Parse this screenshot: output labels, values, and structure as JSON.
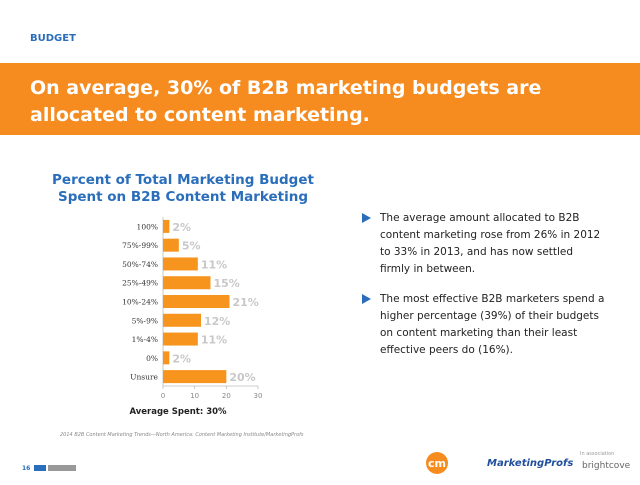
{
  "section": "BUDGET",
  "headline": [
    "On average, 30% of B2B marketing budgets are",
    "allocated to content marketing."
  ],
  "chart_data": {
    "type": "hbar",
    "title": [
      "Percent of Total Marketing Budget",
      "Spent on B2B Content Marketing"
    ],
    "categories": [
      "100%",
      "75%-99%",
      "50%-74%",
      "25%-49%",
      "10%-24%",
      "5%-9%",
      "1%-4%",
      "0%",
      "Unsure"
    ],
    "values": [
      2,
      5,
      11,
      15,
      21,
      12,
      11,
      2,
      20
    ],
    "value_labels": [
      "2%",
      "5%",
      "11%",
      "15%",
      "21%",
      "12%",
      "11%",
      "2%",
      "20%"
    ],
    "color": "#f7941d",
    "xlim": [
      0,
      30
    ],
    "xticks": [
      0,
      10,
      20,
      30
    ],
    "note": "Average Spent: 30%",
    "source": "2014 B2B Content Marketing Trends—North America: Content Marketing Institute/MarketingProfs"
  },
  "bullets": [
    "The average amount allocated to B2B content marketing rose from 26% in 2012 to 33% in 2013, and has now settled firmly in between.",
    "The most effective B2B marketers spend a higher percentage (39%) of their budgets on content marketing than their least effective peers do (16%)."
  ],
  "footer": {
    "page": "16",
    "logos": [
      "cm",
      "MarketingProfs",
      "brightcove"
    ],
    "association": "In association"
  }
}
